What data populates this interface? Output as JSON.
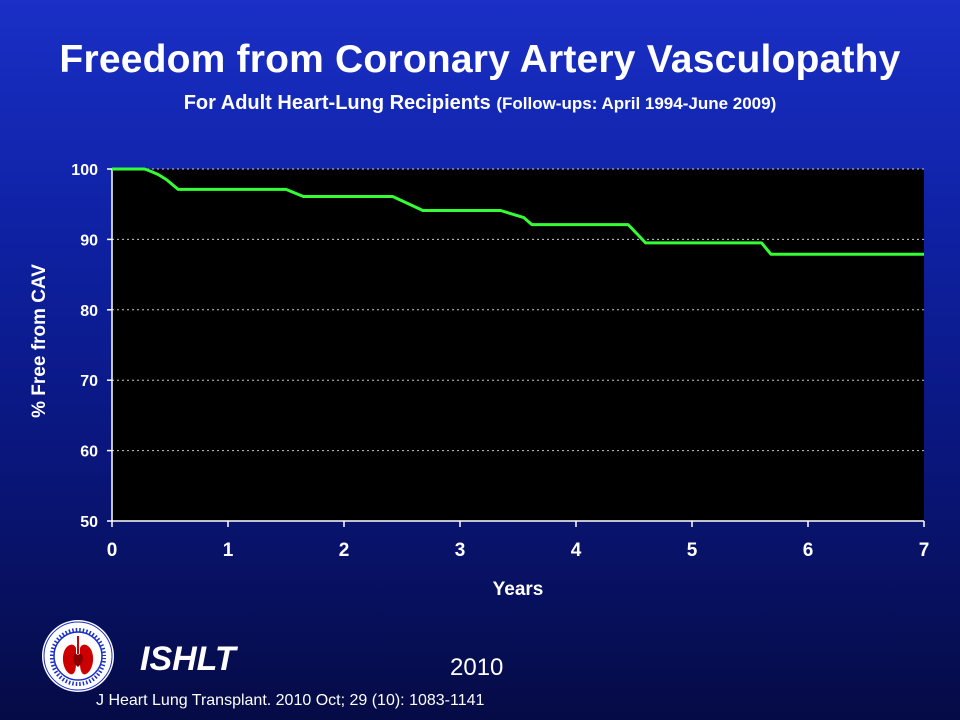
{
  "header": {
    "title": "Freedom from Coronary Artery Vasculopathy",
    "subtitle_main": "For Adult Heart-Lung Recipients",
    "subtitle_paren": "(Follow-ups: April 1994-June 2009)"
  },
  "footer": {
    "org": "ISHLT",
    "year": "2010",
    "citation": "J Heart Lung Transplant. 2010 Oct; 29 (10): 1083-1141"
  },
  "colors": {
    "plot_background": "#000000",
    "line": "#33ff33",
    "grid": "#c8c8c8",
    "text": "#ffffff"
  },
  "chart_data": {
    "type": "line",
    "xlabel": "Years",
    "ylabel": "% Free from CAV",
    "xlim": [
      0,
      7
    ],
    "ylim": [
      50,
      100
    ],
    "xticks": [
      0,
      1,
      2,
      3,
      4,
      5,
      6,
      7
    ],
    "yticks": [
      50,
      60,
      70,
      80,
      90,
      100
    ],
    "grid": "horizontal dotted",
    "series": [
      {
        "x": [
          0,
          0.28,
          0.33,
          0.4,
          0.47,
          0.57,
          1.5,
          1.65,
          2.42,
          2.68,
          3.35,
          3.55,
          3.62,
          4.45,
          4.6,
          5.6,
          5.68,
          7
        ],
        "y": [
          100,
          100,
          99.7,
          99.2,
          98.5,
          97.1,
          97.1,
          96.1,
          96.1,
          94.1,
          94.1,
          93.1,
          92.1,
          92.1,
          89.5,
          89.5,
          87.9,
          87.9
        ]
      }
    ]
  }
}
